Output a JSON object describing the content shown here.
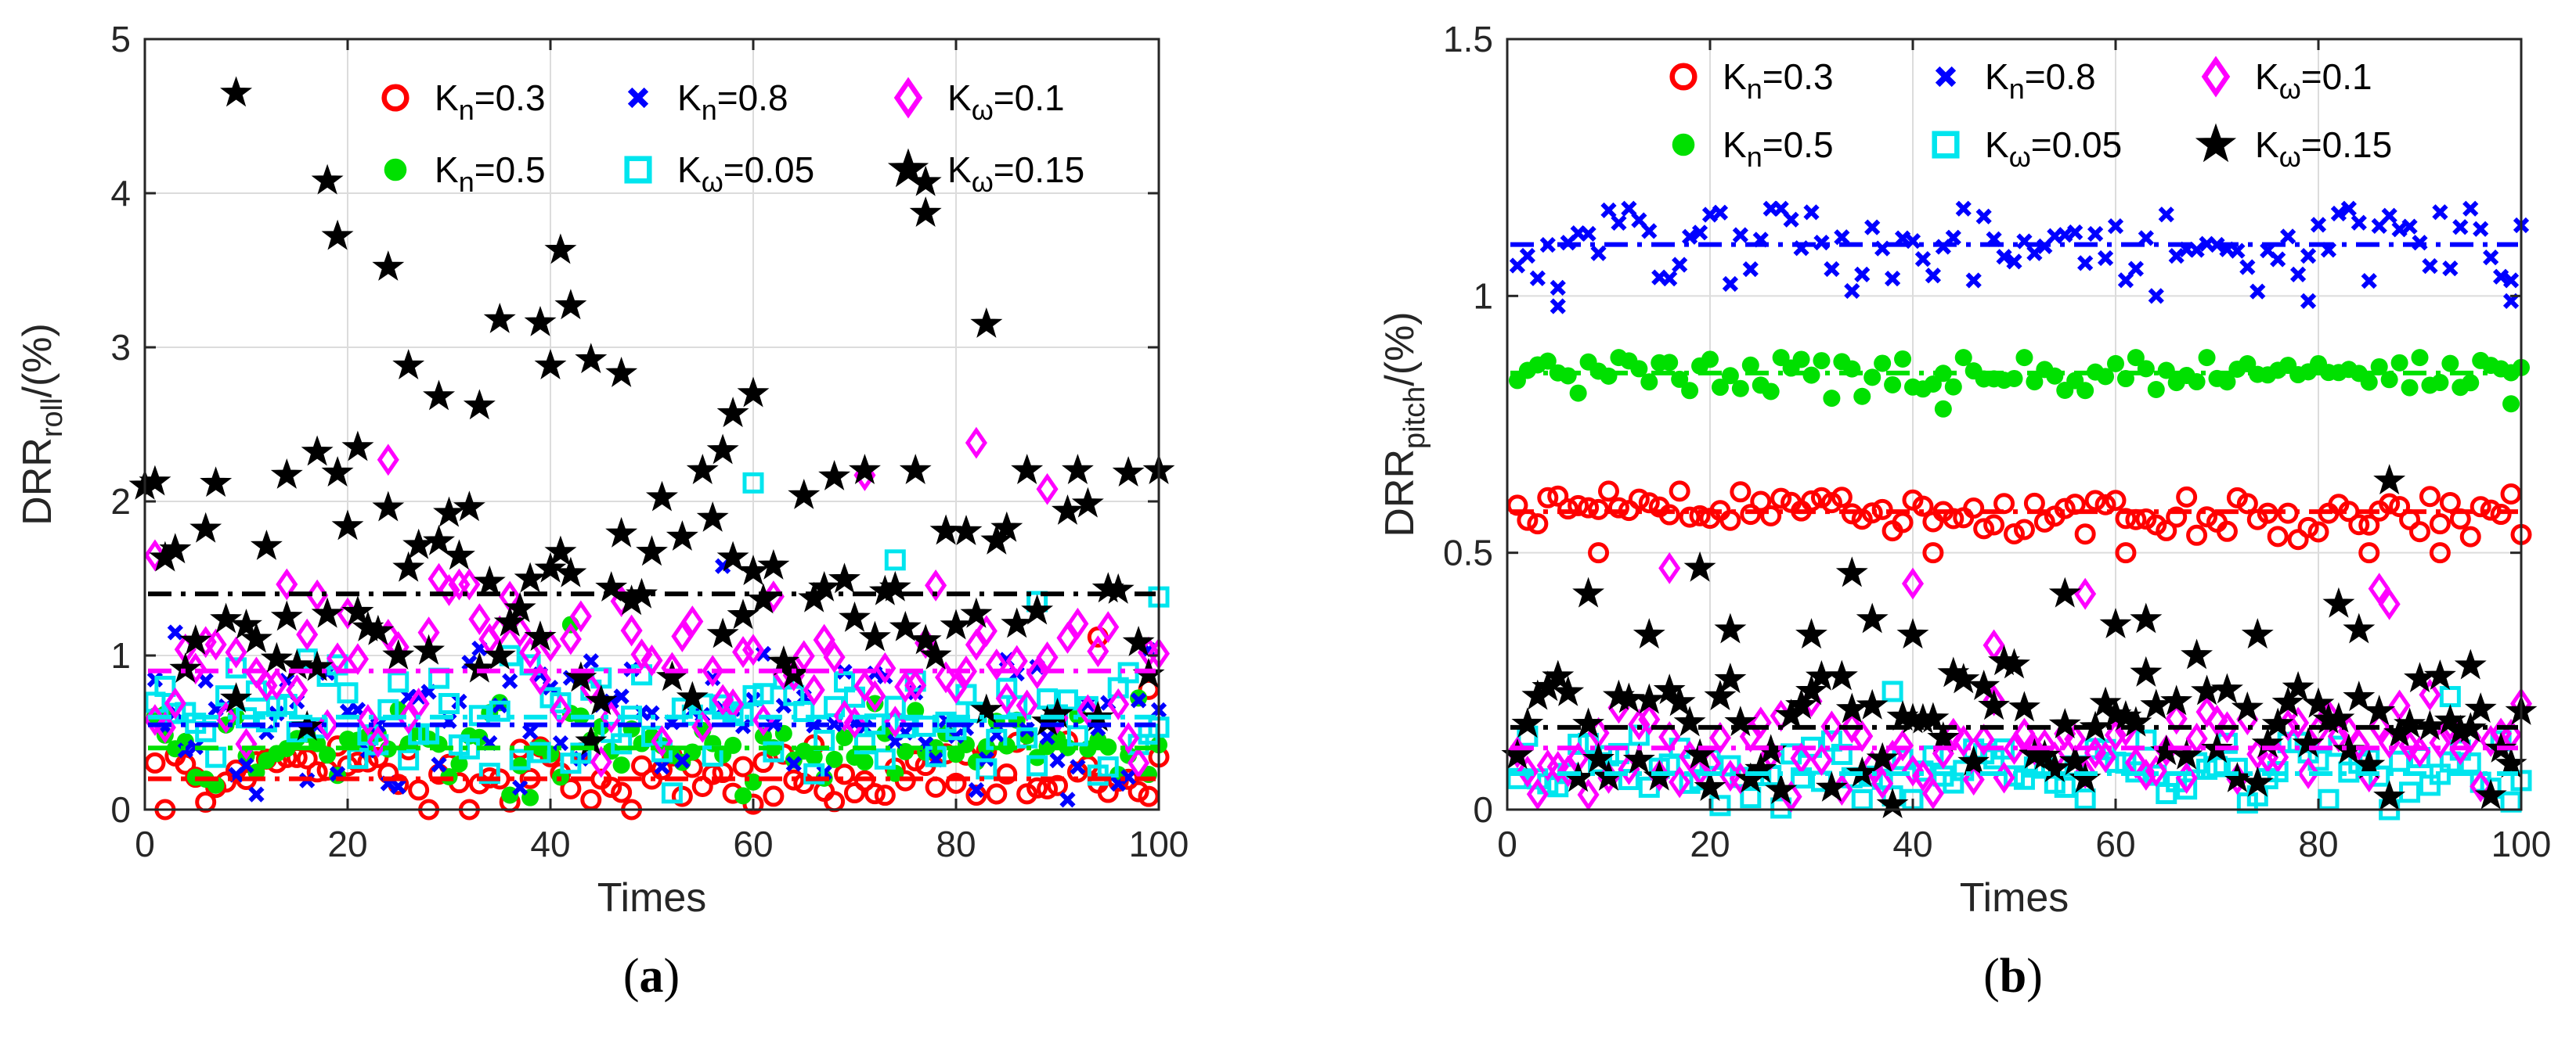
{
  "chart_data": [
    {
      "type": "scatter",
      "panel_label": "a",
      "xlabel": "Times",
      "ylabel_main": "DRR",
      "ylabel_sub": "roll",
      "ylabel_suffix": "/(%)",
      "xlim": [
        0,
        100
      ],
      "ylim": [
        0,
        5
      ],
      "xticks": [
        0,
        20,
        40,
        60,
        80,
        100
      ],
      "yticks": [
        0,
        1,
        2,
        3,
        4,
        5
      ],
      "grid": true,
      "legend_position": "top-right",
      "series": [
        {
          "name": "K_n=0.3",
          "var": "K",
          "sub": "n",
          "val": "=0.3",
          "marker": "circle",
          "color": "#ff0000",
          "mean": 0.2,
          "seed": 11,
          "spread": 0.22,
          "min": 0.0,
          "max": 1.15,
          "outliers": [
            [
              94,
              1.12
            ],
            [
              99,
              0.78
            ]
          ]
        },
        {
          "name": "K_n=0.5",
          "var": "K",
          "sub": "n",
          "val": "=0.5",
          "marker": "dot",
          "color": "#00e000",
          "mean": 0.4,
          "seed": 23,
          "spread": 0.28,
          "min": 0.0,
          "max": 1.25,
          "outliers": [
            [
              42,
              1.2
            ],
            [
              2,
              0.62
            ]
          ]
        },
        {
          "name": "K_n=0.8",
          "var": "K",
          "sub": "n",
          "val": "=0.8",
          "marker": "x",
          "color": "#0000ff",
          "mean": 0.55,
          "seed": 37,
          "spread": 0.45,
          "min": 0.0,
          "max": 1.55,
          "outliers": [
            [
              57,
              1.58
            ],
            [
              3,
              1.15
            ]
          ]
        },
        {
          "name": "K_ω=0.05",
          "var": "K",
          "sub": "ω",
          "val": "=0.05",
          "marker": "square",
          "color": "#00e5ee",
          "mean": 0.6,
          "seed": 53,
          "spread": 0.45,
          "min": 0.0,
          "max": 1.7,
          "outliers": [
            [
              60,
              2.12
            ],
            [
              74,
              1.62
            ],
            [
              88,
              1.35
            ],
            [
              100,
              1.38
            ]
          ]
        },
        {
          "name": "K_ω=0.1",
          "var": "K",
          "sub": "ω",
          "val": "=0.1",
          "marker": "diamond",
          "color": "#ff00ff",
          "mean": 0.9,
          "seed": 71,
          "spread": 0.55,
          "min": 0.0,
          "max": 2.1,
          "outliers": [
            [
              24,
              2.27
            ],
            [
              82,
              2.38
            ],
            [
              71,
              2.17
            ],
            [
              89,
              2.08
            ],
            [
              1,
              1.65
            ]
          ]
        },
        {
          "name": "K_ω=0.15",
          "var": "K",
          "sub": "ω",
          "val": "=0.15",
          "marker": "star",
          "color": "#000000",
          "mean": 1.4,
          "seed": 97,
          "spread": 0.9,
          "min": 0.0,
          "max": 2.2,
          "outliers": [
            [
              9,
              4.65
            ],
            [
              18,
              4.08
            ],
            [
              19,
              3.72
            ],
            [
              24,
              3.52
            ],
            [
              26,
              2.88
            ],
            [
              29,
              2.68
            ],
            [
              33,
              2.62
            ],
            [
              35,
              3.18
            ],
            [
              39,
              3.16
            ],
            [
              40,
              2.88
            ],
            [
              41,
              3.63
            ],
            [
              42,
              3.27
            ],
            [
              44,
              2.92
            ],
            [
              47,
              2.83
            ],
            [
              60,
              2.7
            ],
            [
              58,
              2.57
            ],
            [
              57,
              2.33
            ],
            [
              77,
              4.07
            ],
            [
              77,
              3.87
            ],
            [
              83,
              3.15
            ],
            [
              0,
              2.1
            ],
            [
              21,
              2.35
            ],
            [
              17,
              2.32
            ],
            [
              14,
              2.17
            ]
          ]
        }
      ]
    },
    {
      "type": "scatter",
      "panel_label": "b",
      "xlabel": "Times",
      "ylabel_main": "DRR",
      "ylabel_sub": "pitch",
      "ylabel_suffix": "/(%)",
      "xlim": [
        0,
        100
      ],
      "ylim": [
        0,
        1.5
      ],
      "xticks": [
        0,
        20,
        40,
        60,
        80,
        100
      ],
      "yticks": [
        0,
        0.5,
        1,
        1.5
      ],
      "ytick_labels": [
        "0",
        "0.5",
        "1",
        "1.5"
      ],
      "grid": true,
      "legend_position": "top",
      "series": [
        {
          "name": "K_n=0.3",
          "var": "K",
          "sub": "n",
          "val": "=0.3",
          "marker": "circle",
          "color": "#ff0000",
          "mean": 0.58,
          "seed": 5,
          "spread": 0.05,
          "min": 0.5,
          "max": 0.62,
          "outliers": [
            [
              9,
              0.5
            ],
            [
              42,
              0.5
            ],
            [
              61,
              0.5
            ],
            [
              85,
              0.5
            ],
            [
              92,
              0.5
            ]
          ]
        },
        {
          "name": "K_n=0.5",
          "var": "K",
          "sub": "n",
          "val": "=0.5",
          "marker": "dot",
          "color": "#00e000",
          "mean": 0.85,
          "seed": 15,
          "spread": 0.045,
          "min": 0.78,
          "max": 0.88,
          "outliers": [
            [
              43,
              0.78
            ],
            [
              99,
              0.79
            ]
          ]
        },
        {
          "name": "K_n=0.8",
          "var": "K",
          "sub": "n",
          "val": "=0.8",
          "marker": "x",
          "color": "#0000ff",
          "mean": 1.1,
          "seed": 29,
          "spread": 0.1,
          "min": 0.98,
          "max": 1.17,
          "outliers": [
            [
              5,
              0.98
            ],
            [
              79,
              0.99
            ],
            [
              99,
              0.99
            ]
          ]
        },
        {
          "name": "K_ω=0.05",
          "var": "K",
          "sub": "ω",
          "val": "=0.05",
          "marker": "square",
          "color": "#00e5ee",
          "mean": 0.07,
          "seed": 41,
          "spread": 0.07,
          "min": 0.0,
          "max": 0.18,
          "outliers": [
            [
              38,
              0.23
            ],
            [
              93,
              0.22
            ]
          ]
        },
        {
          "name": "K_ω=0.1",
          "var": "K",
          "sub": "ω",
          "val": "=0.1",
          "marker": "diamond",
          "color": "#ff00ff",
          "mean": 0.12,
          "seed": 61,
          "spread": 0.1,
          "min": 0.0,
          "max": 0.25,
          "outliers": [
            [
              16,
              0.47
            ],
            [
              40,
              0.44
            ],
            [
              57,
              0.42
            ],
            [
              86,
              0.43
            ],
            [
              87,
              0.4
            ],
            [
              48,
              0.32
            ]
          ]
        },
        {
          "name": "K_ω=0.15",
          "var": "K",
          "sub": "ω",
          "val": "=0.15",
          "marker": "star",
          "color": "#000000",
          "mean": 0.16,
          "seed": 83,
          "spread": 0.14,
          "min": 0.0,
          "max": 0.3,
          "outliers": [
            [
              8,
              0.42
            ],
            [
              14,
              0.34
            ],
            [
              19,
              0.47
            ],
            [
              22,
              0.35
            ],
            [
              30,
              0.34
            ],
            [
              34,
              0.46
            ],
            [
              36,
              0.37
            ],
            [
              40,
              0.34
            ],
            [
              55,
              0.42
            ],
            [
              60,
              0.36
            ],
            [
              63,
              0.37
            ],
            [
              74,
              0.34
            ],
            [
              82,
              0.4
            ],
            [
              84,
              0.35
            ],
            [
              87,
              0.64
            ],
            [
              95,
              0.28
            ]
          ]
        }
      ]
    }
  ]
}
